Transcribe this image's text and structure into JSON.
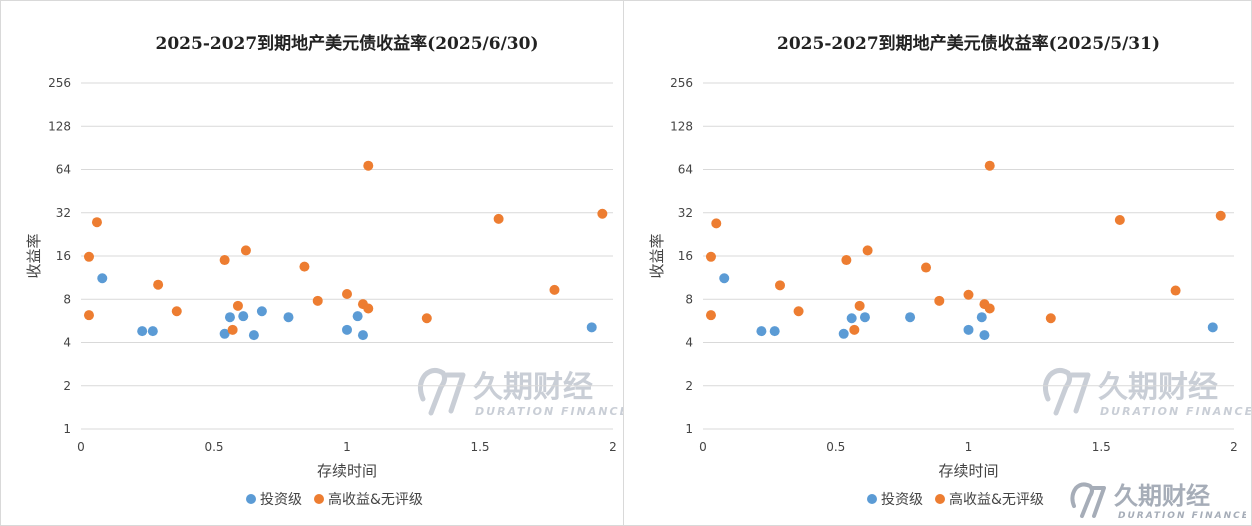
{
  "chart_data": [
    {
      "type": "scatter",
      "title": "2025-2027到期地产美元债收益率(2025/6/30)",
      "xlabel": "存续时间",
      "ylabel": "收益率",
      "xlim": [
        0,
        2
      ],
      "ylim": [
        1,
        256
      ],
      "yscale": "log2",
      "x_ticks": [
        "0",
        "0.5",
        "1",
        "1.5",
        "2"
      ],
      "y_ticks": [
        "1",
        "2",
        "4",
        "8",
        "16",
        "32",
        "64",
        "128",
        "256"
      ],
      "grid": "horizontal",
      "legend_position": "bottom",
      "series": [
        {
          "name": "投资级",
          "color": "#5b9bd5",
          "points": [
            [
              0.08,
              11.2
            ],
            [
              0.23,
              4.8
            ],
            [
              0.27,
              4.8
            ],
            [
              0.54,
              4.6
            ],
            [
              0.56,
              6.0
            ],
            [
              0.61,
              6.1
            ],
            [
              0.65,
              4.5
            ],
            [
              0.68,
              6.6
            ],
            [
              0.78,
              6.0
            ],
            [
              1.0,
              4.9
            ],
            [
              1.04,
              6.1
            ],
            [
              1.06,
              4.5
            ],
            [
              1.92,
              5.1
            ]
          ]
        },
        {
          "name": "高收益&无评级",
          "color": "#ed7d31",
          "points": [
            [
              0.03,
              15.8
            ],
            [
              0.03,
              6.2
            ],
            [
              0.06,
              27.5
            ],
            [
              0.29,
              10.1
            ],
            [
              0.36,
              6.6
            ],
            [
              0.54,
              15.0
            ],
            [
              0.57,
              4.9
            ],
            [
              0.59,
              7.2
            ],
            [
              0.62,
              17.5
            ],
            [
              0.84,
              13.5
            ],
            [
              0.89,
              7.8
            ],
            [
              1.0,
              8.7
            ],
            [
              1.06,
              7.4
            ],
            [
              1.08,
              6.9
            ],
            [
              1.08,
              68.0
            ],
            [
              1.3,
              5.9
            ],
            [
              1.57,
              29.0
            ],
            [
              1.78,
              9.3
            ],
            [
              1.96,
              31.5
            ]
          ]
        }
      ]
    },
    {
      "type": "scatter",
      "title": "2025-2027到期地产美元债收益率(2025/5/31)",
      "xlabel": "存续时间",
      "ylabel": "收益率",
      "xlim": [
        0,
        2
      ],
      "ylim": [
        1,
        256
      ],
      "yscale": "log2",
      "x_ticks": [
        "0",
        "0.5",
        "1",
        "1.5",
        "2"
      ],
      "y_ticks": [
        "1",
        "2",
        "4",
        "8",
        "16",
        "32",
        "64",
        "128",
        "256"
      ],
      "grid": "horizontal",
      "legend_position": "bottom",
      "series": [
        {
          "name": "投资级",
          "color": "#5b9bd5",
          "points": [
            [
              0.08,
              11.2
            ],
            [
              0.22,
              4.8
            ],
            [
              0.27,
              4.8
            ],
            [
              0.53,
              4.6
            ],
            [
              0.56,
              5.9
            ],
            [
              0.61,
              6.0
            ],
            [
              0.78,
              6.0
            ],
            [
              1.0,
              4.9
            ],
            [
              1.05,
              6.0
            ],
            [
              1.06,
              4.5
            ],
            [
              1.92,
              5.1
            ]
          ]
        },
        {
          "name": "高收益&无评级",
          "color": "#ed7d31",
          "points": [
            [
              0.03,
              15.8
            ],
            [
              0.03,
              6.2
            ],
            [
              0.05,
              27.0
            ],
            [
              0.29,
              10.0
            ],
            [
              0.36,
              6.6
            ],
            [
              0.54,
              15.0
            ],
            [
              0.57,
              4.9
            ],
            [
              0.59,
              7.2
            ],
            [
              0.62,
              17.5
            ],
            [
              0.84,
              13.3
            ],
            [
              0.89,
              7.8
            ],
            [
              1.0,
              8.6
            ],
            [
              1.06,
              7.4
            ],
            [
              1.08,
              6.9
            ],
            [
              1.08,
              68.0
            ],
            [
              1.31,
              5.9
            ],
            [
              1.57,
              28.5
            ],
            [
              1.78,
              9.2
            ],
            [
              1.95,
              30.5
            ]
          ]
        }
      ]
    }
  ],
  "watermark": {
    "cn": "久期财经",
    "en": "DURATION FINANCE",
    "color": "#c9ced6"
  },
  "brand": {
    "cn": "久期财经",
    "en": "DURATION FINANCE",
    "color": "#a6adb8"
  }
}
